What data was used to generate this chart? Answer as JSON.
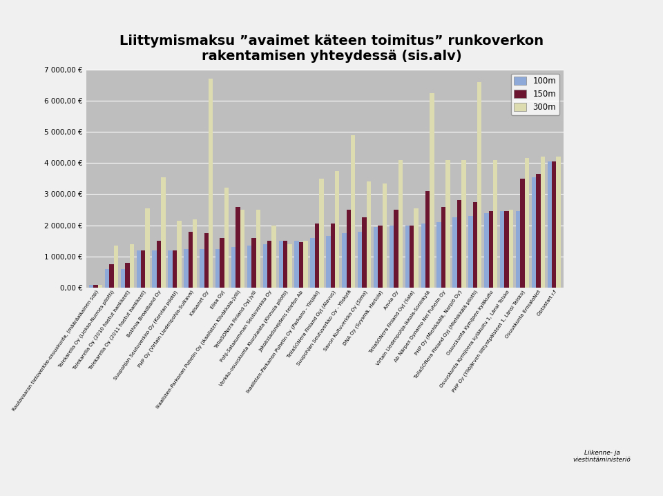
{
  "title": "Liittymismaksu ”avaimet käteen toimitus” runkoverkon\nrakentamisen yhteydessä (sis.alv)",
  "categories": [
    "Rautavaaran tietoverkko-osuuskunta, (määräaikainen sop)",
    "Telekarelia Oy (Lieksa-Nurmes pilotti)",
    "Telekarelia Oy (2010 haetut hankkeet)",
    "Telekarelia Oy (2011 haetut hankkeet)",
    "Bothnia Broadband Oy",
    "Suupohjan Seutuverkko Oy (Karvian pilotti)",
    "PHP Oy (Virtain Liedenpohja-Sulkava)",
    "Kaisanet Oy",
    "Elisa Oyj",
    "Ikaalisten-Parkanon Puhelin Oy (Ikaalisten Kilväkkala-Jyllì)",
    "TeliaSONera Finland Oyj Jyllì",
    "Pohj-Satakumman Seutuverkko Oy",
    "Verkko-osuuskunta Kuuskaista (Kinnula pilotti)",
    "Jakobstadsnejdens telefon Ab",
    "Ikaalisten-Parkanon Puhelin Oy (Parkano - Ylisjoki)",
    "TeliaSONera Finland Oyj (Alavus)",
    "Suupohjan Seutuverkko Oy - Yliskylä",
    "Savon Kultuverkko Oy (Simo)",
    "DNA Oy (Syysmä, Hartola)",
    "Anvia Oy",
    "TeliaSONera Finland Oyj (Sala)",
    "Virtain Liedenpohja-Ikkala-Soninkylä",
    "Ab Närpes Dynamo Nei Puhelin Oy",
    "PHP Oy (Miehikkälä, Narpiö Oy)",
    "TeliaSONera Finland Oyj (Miehikkälä pilotti)",
    "Osuuskunta Kymijoen kyläkuitu",
    "Osuuskunta Kymijoens kyläkuitu 1, Länsi Teisko",
    "PHP Oy (Yliöjärven liittyntpäisteet 1, Länsi Teisko)",
    "Osuuskunta EmsaloNet",
    "Optostart r.f"
  ],
  "data_100m": [
    100,
    600,
    600,
    1200,
    1200,
    1200,
    1250,
    1250,
    1250,
    1300,
    1350,
    1400,
    1500,
    1500,
    1600,
    1650,
    1750,
    1800,
    1950,
    2000,
    2000,
    2050,
    2100,
    2250,
    2300,
    2400,
    2450,
    2450,
    3550,
    4050
  ],
  "data_150m": [
    100,
    750,
    800,
    1200,
    1500,
    1200,
    1800,
    1750,
    1600,
    2600,
    1600,
    1500,
    1500,
    1450,
    2050,
    2050,
    2500,
    2250,
    2000,
    2500,
    2000,
    3100,
    2600,
    2800,
    2750,
    2450,
    2450,
    3500,
    3650,
    4050
  ],
  "data_300m": [
    100,
    1350,
    1400,
    2550,
    3550,
    2150,
    2200,
    6700,
    3200,
    2500,
    2500,
    2000,
    1400,
    1500,
    3500,
    3750,
    4900,
    3400,
    3350,
    4100,
    2550,
    6250,
    4100,
    4100,
    6600,
    4100,
    2500,
    4150,
    4200,
    4200
  ],
  "color_100m": "#8EA9D8",
  "color_150m": "#6B1530",
  "color_300m": "#DDDBB0",
  "ylim": [
    0,
    7000
  ],
  "ytick_labels": [
    "0,00 €",
    "1 000,00 €",
    "2 000,00 €",
    "3 000,00 €",
    "4 000,00 €",
    "5 000,00 €",
    "6 000,00 €",
    "7 000,00 €"
  ],
  "ytick_values": [
    0,
    1000,
    2000,
    3000,
    4000,
    5000,
    6000,
    7000
  ],
  "legend_labels": [
    "100m",
    "150m",
    "300m"
  ],
  "bg_color": "#BEBEBE",
  "fig_bg_color": "#F0F0F0",
  "title_fontsize": 14
}
